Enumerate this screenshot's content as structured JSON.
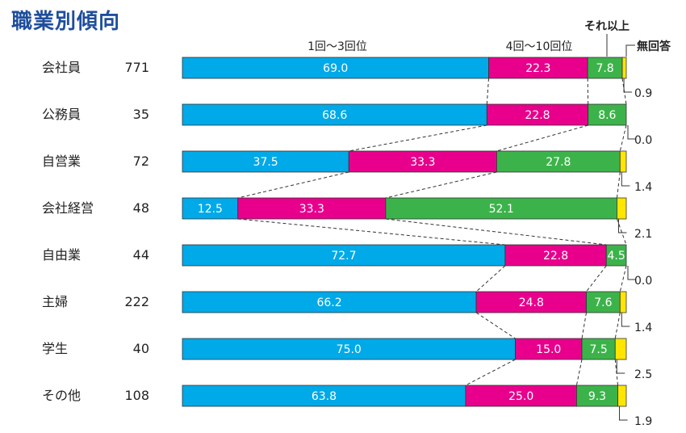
{
  "title": "職業別傾向",
  "chart_data": {
    "type": "bar",
    "stacked": true,
    "orientation": "horizontal",
    "normalized_to": 100,
    "legend": [
      "1回～3回位",
      "4回～10回位",
      "それ以上",
      "無回答"
    ],
    "colors": [
      "#00a9e8",
      "#e8008c",
      "#3cb34a",
      "#ffe500"
    ],
    "categories": [
      {
        "label": "会社員",
        "n": "771"
      },
      {
        "label": "公務員",
        "n": "35"
      },
      {
        "label": "自営業",
        "n": "72"
      },
      {
        "label": "会社経営",
        "n": "48"
      },
      {
        "label": "自由業",
        "n": "44"
      },
      {
        "label": "主婦",
        "n": "222"
      },
      {
        "label": "学生",
        "n": "40"
      },
      {
        "label": "その他",
        "n": "108"
      }
    ],
    "series": [
      {
        "name": "1回～3回位",
        "values": [
          69.0,
          68.6,
          37.5,
          12.5,
          72.7,
          66.2,
          75.0,
          63.8
        ]
      },
      {
        "name": "4回～10回位",
        "values": [
          22.3,
          22.8,
          33.3,
          33.3,
          22.8,
          24.8,
          15.0,
          25.0
        ]
      },
      {
        "name": "それ以上",
        "values": [
          7.8,
          8.6,
          27.8,
          52.1,
          4.5,
          7.6,
          7.5,
          9.3
        ]
      },
      {
        "name": "無回答",
        "values": [
          0.9,
          0.0,
          1.4,
          2.1,
          0.0,
          1.4,
          2.5,
          1.9
        ]
      }
    ],
    "labels": [
      [
        "69.0",
        "22.3",
        "7.8",
        "0.9"
      ],
      [
        "68.6",
        "22.8",
        "8.6",
        "0.0"
      ],
      [
        "37.5",
        "33.3",
        "27.8",
        "1.4"
      ],
      [
        "12.5",
        "33.3",
        "52.1",
        "2.1"
      ],
      [
        "72.7",
        "22.8",
        "4.5",
        "0.0"
      ],
      [
        "66.2",
        "24.8",
        "7.6",
        "1.4"
      ],
      [
        "75.0",
        "15.0",
        "7.5",
        "2.5"
      ],
      [
        "63.8",
        "25.0",
        "9.3",
        "1.9"
      ]
    ]
  }
}
